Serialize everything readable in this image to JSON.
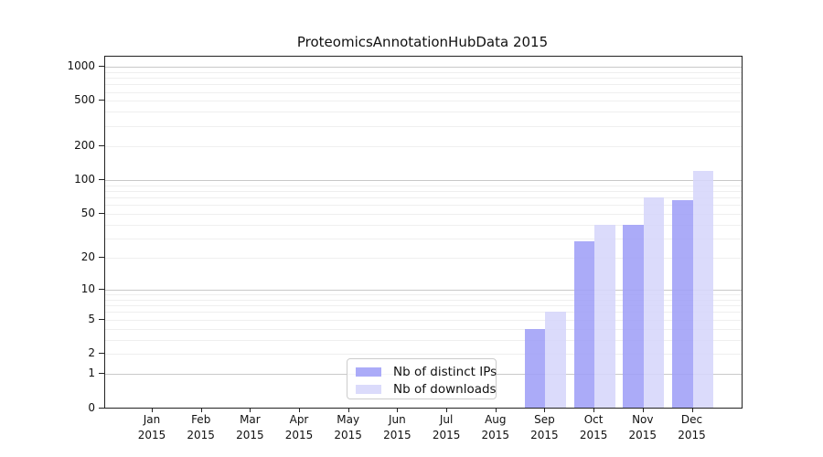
{
  "chart_data": {
    "type": "bar",
    "title": "ProteomicsAnnotationHubData 2015",
    "months": [
      "Jan",
      "Feb",
      "Mar",
      "Apr",
      "May",
      "Jun",
      "Jul",
      "Aug",
      "Sep",
      "Oct",
      "Nov",
      "Dec"
    ],
    "year": "2015",
    "series": [
      {
        "name": "Nb of distinct IPs",
        "color": "#9f9ff7",
        "values": [
          0,
          0,
          0,
          0,
          0,
          0,
          0,
          0,
          4,
          28,
          40,
          66
        ]
      },
      {
        "name": "Nb of downloads",
        "color": "#d6d6fa",
        "values": [
          0,
          0,
          0,
          0,
          0,
          0,
          0,
          0,
          6,
          40,
          70,
          120
        ]
      }
    ],
    "y_ticks": [
      0,
      1,
      2,
      5,
      10,
      20,
      50,
      100,
      200,
      500,
      1000
    ],
    "y_scale": "log1p",
    "ylim": [
      0,
      1200
    ],
    "grid": true,
    "legend_position": "bottom-center",
    "colors": {
      "grid_major": "#c9c9c9",
      "grid_minor": "#efefef",
      "frame": "#222222",
      "background": "#ffffff"
    }
  }
}
